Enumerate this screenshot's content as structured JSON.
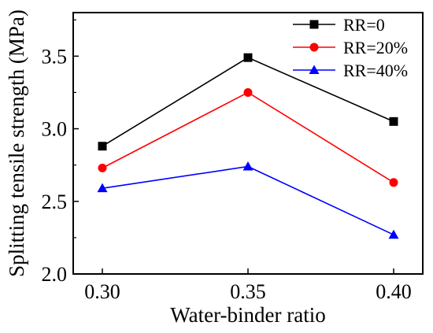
{
  "chart_data": {
    "type": "line",
    "title": "",
    "xlabel": "Water-binder ratio",
    "ylabel": "Splitting tensile strength (MPa)",
    "x": [
      0.3,
      0.35,
      0.4
    ],
    "x_tick_labels": [
      "0.30",
      "0.35",
      "0.40"
    ],
    "y_tick_labels": [
      "2.0",
      "2.5",
      "3.0",
      "3.5"
    ],
    "xlim": [
      0.29,
      0.41
    ],
    "ylim": [
      2.0,
      3.8
    ],
    "grid": false,
    "legend_position": "top-right",
    "series": [
      {
        "name": "RR=0",
        "values": [
          2.88,
          3.49,
          3.05
        ],
        "color": "#000000",
        "marker": "square"
      },
      {
        "name": "RR=20%",
        "values": [
          2.73,
          3.25,
          2.63
        ],
        "color": "#ff0000",
        "marker": "circle"
      },
      {
        "name": "RR=40%",
        "values": [
          2.59,
          2.74,
          2.27
        ],
        "color": "#0000ff",
        "marker": "triangle"
      }
    ]
  }
}
